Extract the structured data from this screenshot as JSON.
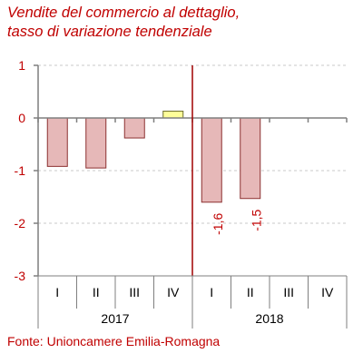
{
  "chart_data": {
    "type": "bar",
    "title": [
      "Vendite del commercio al dettaglio,",
      "tasso di variazione tendenziale"
    ],
    "source": "Fonte: Unioncamere Emilia-Romagna",
    "y_ticks": [
      "1",
      "0",
      "-1",
      "-2",
      "-3"
    ],
    "ylim": [
      -3,
      1
    ],
    "categories": [
      "I",
      "II",
      "III",
      "IV",
      "I",
      "II",
      "III",
      "IV"
    ],
    "groups": [
      {
        "label": "2017",
        "quarters": 4
      },
      {
        "label": "2018",
        "quarters": 4
      }
    ],
    "values": [
      -0.92,
      -0.95,
      -0.38,
      0.13,
      -1.6,
      -1.53,
      null,
      null
    ],
    "data_labels": [
      "",
      "",
      "",
      "",
      "-1,6",
      "-1,5",
      "",
      ""
    ],
    "colors": {
      "negative_fill": "#e6b8b8",
      "negative_stroke": "#8c3030",
      "positive_fill": "#ffff99",
      "positive_stroke": "#6e6e2e",
      "divider": "#a00000",
      "text_red": "#c00000",
      "axis": "#7f7f7f"
    },
    "gridlines": true
  }
}
